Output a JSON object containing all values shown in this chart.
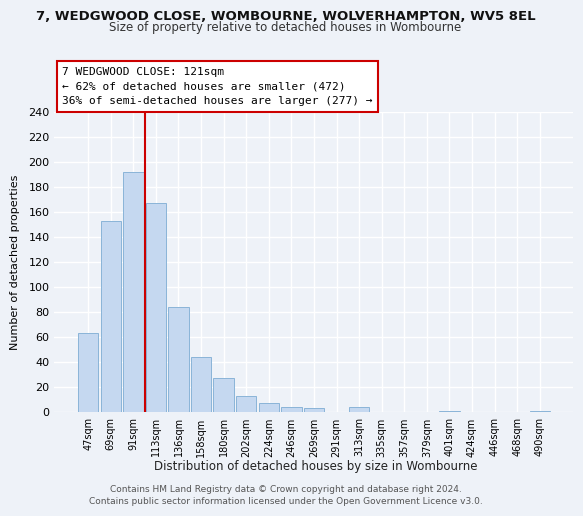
{
  "title": "7, WEDGWOOD CLOSE, WOMBOURNE, WOLVERHAMPTON, WV5 8EL",
  "subtitle": "Size of property relative to detached houses in Wombourne",
  "xlabel": "Distribution of detached houses by size in Wombourne",
  "ylabel": "Number of detached properties",
  "bar_color": "#c5d8f0",
  "bar_edge_color": "#8ab4d8",
  "categories": [
    "47sqm",
    "69sqm",
    "91sqm",
    "113sqm",
    "136sqm",
    "158sqm",
    "180sqm",
    "202sqm",
    "224sqm",
    "246sqm",
    "269sqm",
    "291sqm",
    "313sqm",
    "335sqm",
    "357sqm",
    "379sqm",
    "401sqm",
    "424sqm",
    "446sqm",
    "468sqm",
    "490sqm"
  ],
  "values": [
    63,
    153,
    192,
    167,
    84,
    44,
    27,
    13,
    7,
    4,
    3,
    0,
    4,
    0,
    0,
    0,
    1,
    0,
    0,
    0,
    1
  ],
  "ylim": [
    0,
    240
  ],
  "yticks": [
    0,
    20,
    40,
    60,
    80,
    100,
    120,
    140,
    160,
    180,
    200,
    220,
    240
  ],
  "property_line_color": "#cc0000",
  "property_line_index": 2.5,
  "annotation_title": "7 WEDGWOOD CLOSE: 121sqm",
  "annotation_line1": "← 62% of detached houses are smaller (472)",
  "annotation_line2": "36% of semi-detached houses are larger (277) →",
  "annotation_box_color": "#ffffff",
  "annotation_box_edge": "#cc0000",
  "footer_line1": "Contains HM Land Registry data © Crown copyright and database right 2024.",
  "footer_line2": "Contains public sector information licensed under the Open Government Licence v3.0.",
  "background_color": "#eef2f8",
  "grid_color": "#ffffff"
}
